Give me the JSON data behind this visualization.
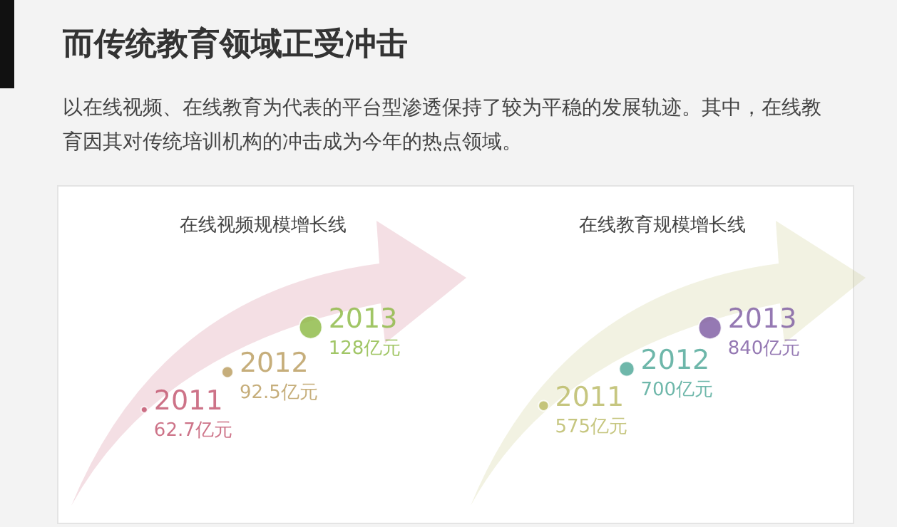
{
  "chart_data": [
    {
      "type": "other",
      "title": "而传统教育领域正受冲击",
      "subtitle": "以在线视频、在线教育为代表的平台型渗透保持了较为平稳的发展轨迹。其中，在线教育因其对传统培训机构的冲击成为今年的热点领域。"
    },
    {
      "type": "other",
      "title": "在线视频规模增长线",
      "categories": [
        "2011",
        "2012",
        "2013"
      ],
      "values": [
        62.7,
        92.5,
        128
      ],
      "value_labels": [
        "62.7亿元",
        "92.5亿元",
        "128亿元"
      ],
      "colors": [
        "#c0506a",
        "#b89a5a",
        "#8ab840"
      ]
    },
    {
      "type": "other",
      "title": "在线教育规模增长线",
      "categories": [
        "2011",
        "2012",
        "2013"
      ],
      "values": [
        575,
        700,
        840
      ],
      "value_labels": [
        "575亿元",
        "700亿元",
        "840亿元"
      ],
      "colors": [
        "#b8b860",
        "#4aa595",
        "#7a58a0"
      ]
    }
  ]
}
